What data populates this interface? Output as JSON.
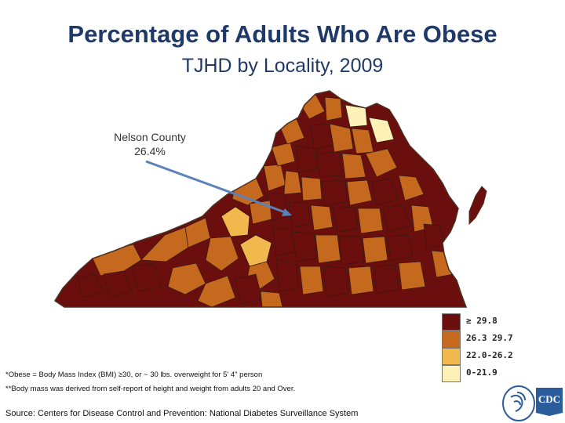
{
  "title": "Percentage of Adults Who Are Obese",
  "subtitle": "TJHD by Locality, 2009",
  "callout": {
    "locality": "Nelson County",
    "value": "26.4%"
  },
  "legend": [
    {
      "label": "≥ 29.8",
      "color": "#6b0e0e"
    },
    {
      "label": "26.3 29.7",
      "color": "#c5691e"
    },
    {
      "label": "22.0-26.2",
      "color": "#f1b84d"
    },
    {
      "label": "0-21.9",
      "color": "#fdf1b7"
    }
  ],
  "colors": {
    "title": "#1f3a68",
    "callout_arrow": "#5a82b8",
    "map_border": "#4a3020"
  },
  "notes": {
    "obese_definition": "*Obese = Body Mass Index (BMI) ≥30, or ~ 30 lbs. overweight for 5' 4\" person",
    "bmi_source": "**Body mass was derived from self-report of height and weight from adults 20 and Over.",
    "source": "Source: Centers for Disease Control and Prevention: National Diabetes Surveillance System"
  },
  "logo": {
    "text": "CDC",
    "icon": "hhs-eagle-icon"
  }
}
